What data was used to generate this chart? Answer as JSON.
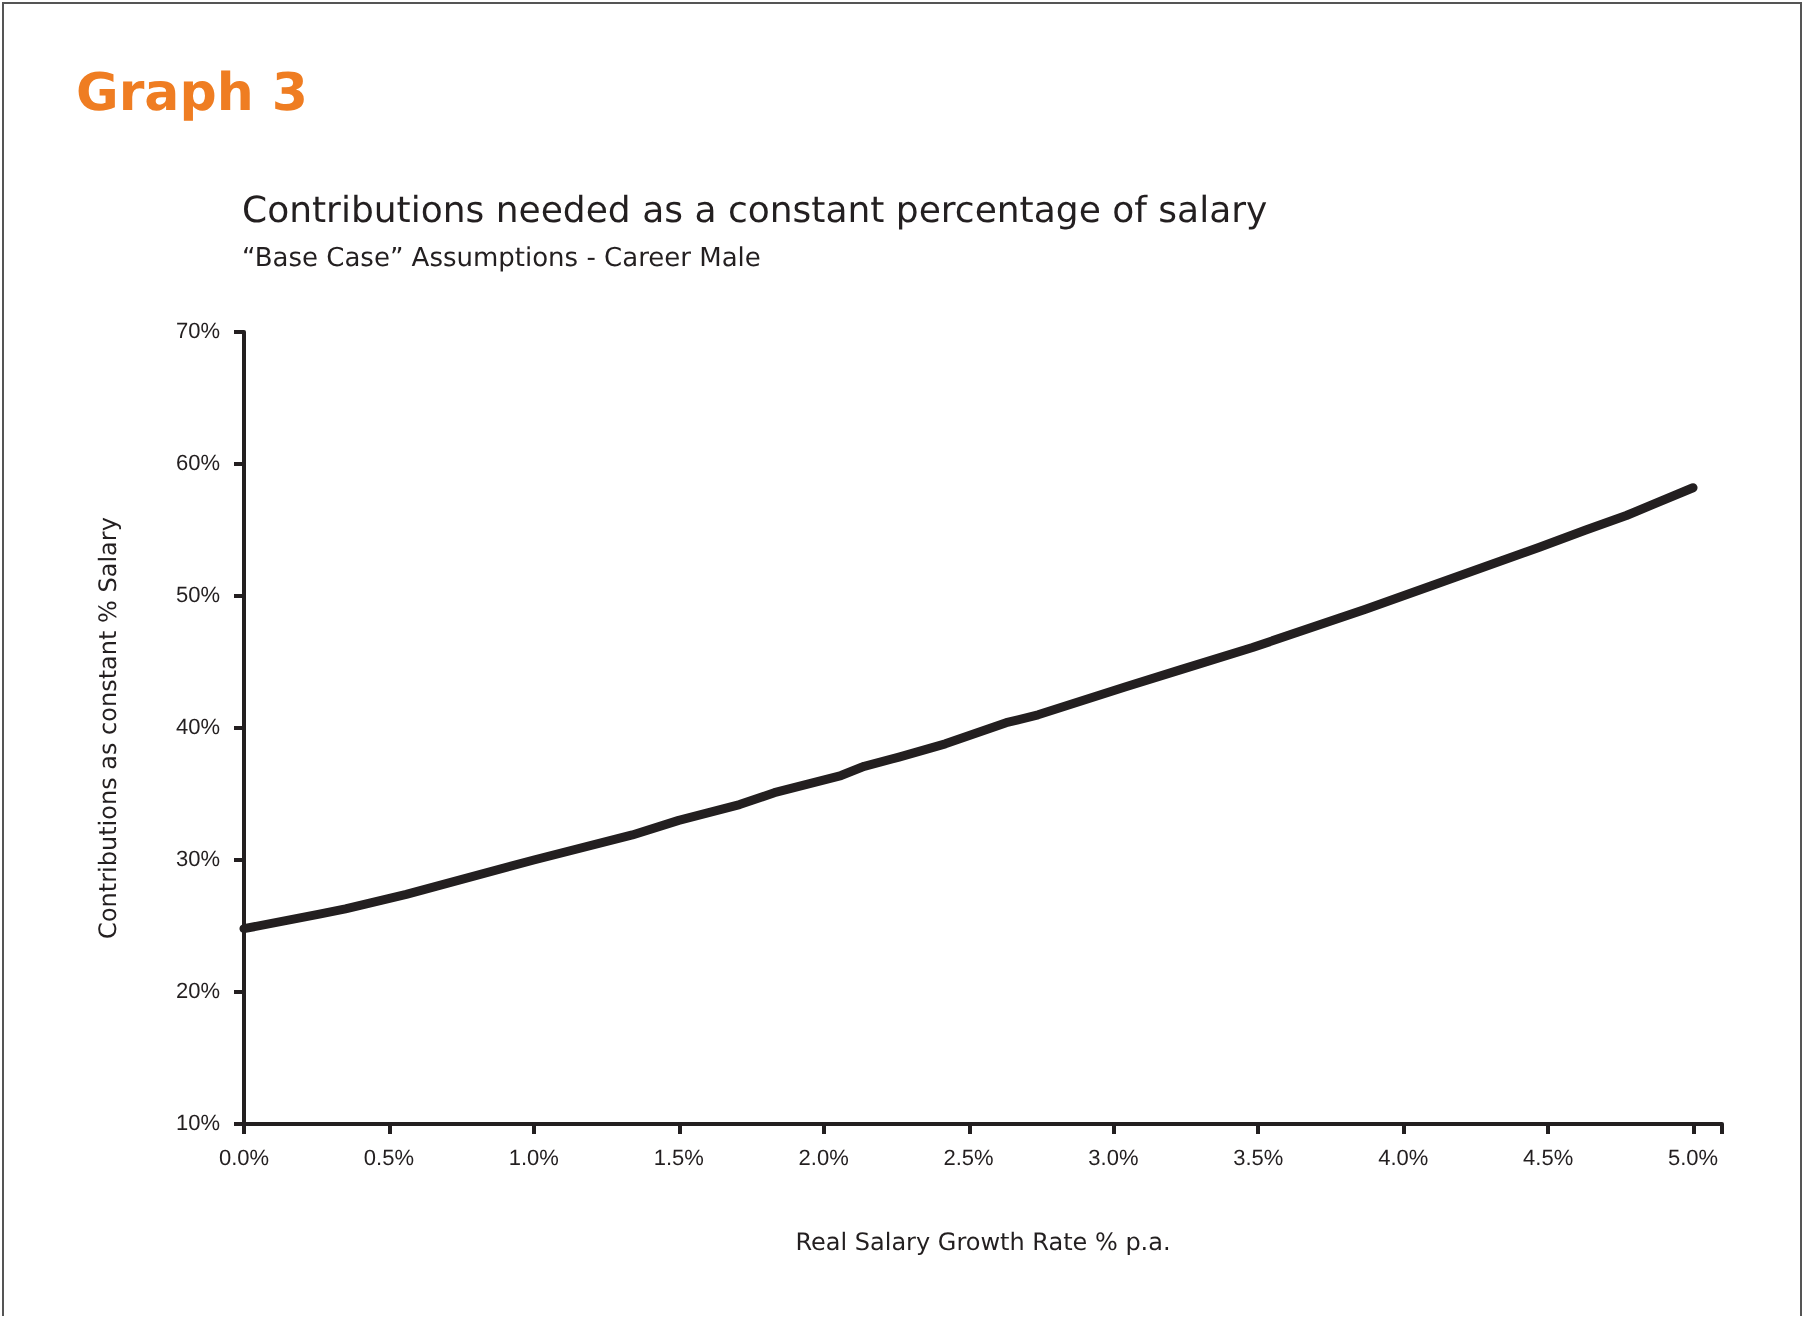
{
  "chart_data": {
    "type": "line",
    "title": "Contributions needed as a constant percentage of salary",
    "subtitle": "“Base Case” Assumptions - Career Male",
    "annotations": [
      "Graph 3"
    ],
    "xlabel": "Real Salary Growth Rate % p.a.",
    "ylabel": "Contributions as constant % Salary",
    "x": [
      0,
      0.26,
      0.35,
      0.56,
      1.0,
      1.34,
      1.5,
      1.71,
      1.83,
      2.06,
      2.14,
      2.26,
      2.42,
      2.63,
      2.74,
      3.04,
      3.23,
      3.48,
      3.87,
      4.1,
      4.47,
      4.63,
      4.77,
      5.0
    ],
    "series": [
      {
        "color": "#231f20",
        "values": [
          24.8,
          25.9,
          26.3,
          27.4,
          30.0,
          31.9,
          33.0,
          34.2,
          35.1,
          36.4,
          37.1,
          37.8,
          38.8,
          40.4,
          41.0,
          43.1,
          44.4,
          46.1,
          49.0,
          50.8,
          53.7,
          55.0,
          56.1,
          58.2
        ]
      }
    ],
    "xlim": [
      0,
      5.1
    ],
    "xticks": [
      {
        "value": 0,
        "label": "0.0%"
      },
      {
        "value": 0.5,
        "label": "0.5%"
      },
      {
        "value": 1,
        "label": "1.0%"
      },
      {
        "value": 1.5,
        "label": "1.5%"
      },
      {
        "value": 2,
        "label": "2.0%"
      },
      {
        "value": 2.5,
        "label": "2.5%"
      },
      {
        "value": 3,
        "label": "3.0%"
      },
      {
        "value": 3.5,
        "label": "3.5%"
      },
      {
        "value": 4,
        "label": "4.0%"
      },
      {
        "value": 4.5,
        "label": "4.5%"
      },
      {
        "value": 5,
        "label": "5.0%"
      },
      {
        "value": 5.1,
        "label": null
      }
    ],
    "ylim": [
      10,
      70
    ],
    "yticks": [
      {
        "value": 10,
        "label": "10%"
      },
      {
        "value": 20,
        "label": "20%"
      },
      {
        "value": 30,
        "label": "30%"
      },
      {
        "value": 40,
        "label": "40%"
      },
      {
        "value": 50,
        "label": "50%"
      },
      {
        "value": 60,
        "label": "60%"
      },
      {
        "value": 70,
        "label": "70%"
      }
    ],
    "grid": false,
    "marker": "none",
    "line_style": "solid"
  }
}
